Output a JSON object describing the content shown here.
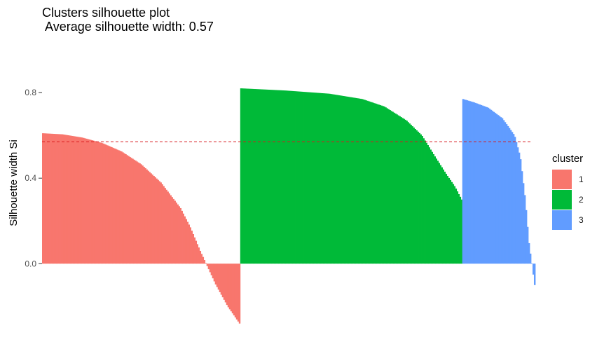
{
  "chart_data": {
    "type": "bar",
    "title": "Clusters silhouette plot",
    "subtitle": " Average silhouette width: 0.57",
    "xlabel": "",
    "ylabel": "Silhouette width Si",
    "ylim": [
      -0.34,
      1.03
    ],
    "yticks": [
      "0.0",
      "0.4",
      "0.8"
    ],
    "yticks_values": [
      0.0,
      0.4,
      0.8
    ],
    "average_line": 0.57,
    "grid": false,
    "legend_position": "right",
    "legend_title": "cluster",
    "series": [
      {
        "name": "1",
        "color": "#F8766D",
        "count": 141,
        "profile": [
          [
            0,
            0.61
          ],
          [
            0.1,
            0.605
          ],
          [
            0.2,
            0.59
          ],
          [
            0.3,
            0.565
          ],
          [
            0.4,
            0.525
          ],
          [
            0.5,
            0.465
          ],
          [
            0.6,
            0.38
          ],
          [
            0.7,
            0.26
          ],
          [
            0.75,
            0.17
          ],
          [
            0.8,
            0.06
          ],
          [
            0.83,
            0.0
          ],
          [
            0.88,
            -0.1
          ],
          [
            0.94,
            -0.2
          ],
          [
            1.0,
            -0.28
          ]
        ]
      },
      {
        "name": "2",
        "color": "#00BA38",
        "count": 158,
        "profile": [
          [
            0,
            0.82
          ],
          [
            0.2,
            0.81
          ],
          [
            0.4,
            0.795
          ],
          [
            0.55,
            0.77
          ],
          [
            0.65,
            0.735
          ],
          [
            0.75,
            0.67
          ],
          [
            0.82,
            0.6
          ],
          [
            0.88,
            0.5
          ],
          [
            0.93,
            0.42
          ],
          [
            0.97,
            0.36
          ],
          [
            1.0,
            0.3
          ]
        ]
      },
      {
        "name": "3",
        "color": "#619CFF",
        "count": 52,
        "profile": [
          [
            0,
            0.77
          ],
          [
            0.15,
            0.755
          ],
          [
            0.35,
            0.73
          ],
          [
            0.55,
            0.68
          ],
          [
            0.72,
            0.6
          ],
          [
            0.8,
            0.5
          ],
          [
            0.87,
            0.3
          ],
          [
            0.92,
            0.1
          ],
          [
            0.96,
            0.0
          ],
          [
            0.98,
            -0.05
          ],
          [
            1.0,
            -0.1
          ]
        ]
      }
    ]
  }
}
